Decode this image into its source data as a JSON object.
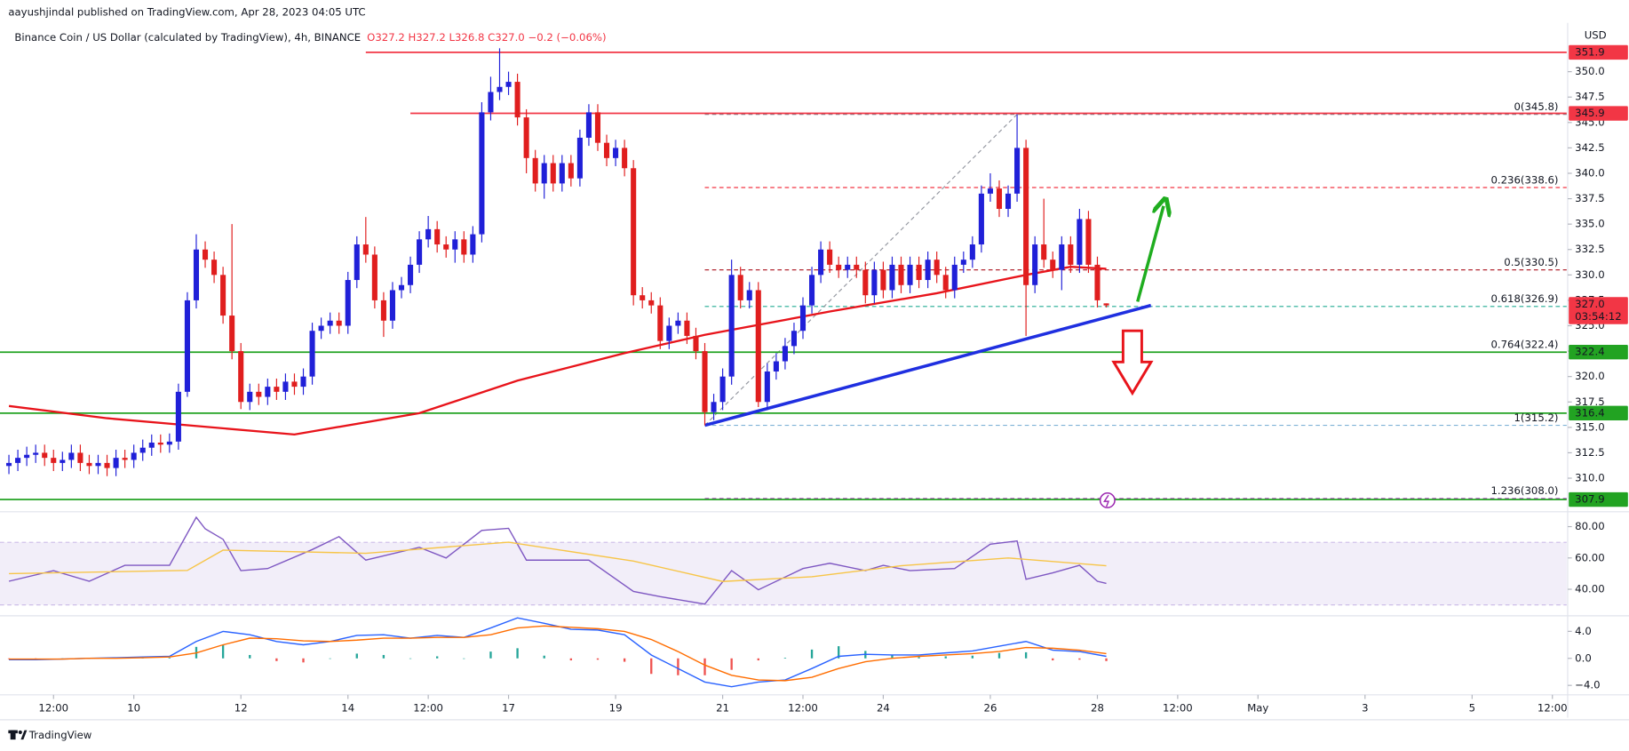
{
  "header": {
    "publisher": "aayushjindal published on TradingView.com, Apr 28, 2023 04:05 UTC"
  },
  "footer": {
    "brand": "TradingView"
  },
  "chart_data": [
    {
      "type": "candlestick",
      "title": "Binance Coin / US Dollar (calculated by TradingView), 4h, BINANCE",
      "subtitle": "O327.2 H327.2 L326.8 C327.0 −0.2 (−0.06%)",
      "y_axis_label": "USD",
      "up_color": "#2020d8",
      "down_color": "#e01e1e",
      "open": [
        311.2,
        311.5,
        312,
        312.3,
        312.5,
        312,
        311.5,
        311.8,
        312.5,
        311.5,
        311.2,
        311.5,
        311,
        312,
        311.8,
        312.5,
        313,
        313.5,
        313.3,
        313.6,
        318.5,
        327.5,
        332.5,
        331.5,
        330,
        326,
        322.5,
        317.5,
        318.5,
        318,
        319,
        318.5,
        319.5,
        319,
        320,
        324.5,
        325,
        325.5,
        325,
        329.5,
        333,
        332,
        327.5,
        325.5,
        328.5,
        329,
        331,
        333.5,
        334.5,
        333,
        332.5,
        333.5,
        332,
        334,
        346,
        348,
        348.5,
        349,
        345.5,
        341.5,
        339,
        341,
        339,
        341,
        339.5,
        343.5,
        346,
        343,
        341.5,
        342.5,
        340.5,
        328,
        327.5,
        327,
        323.5,
        325,
        325.5,
        324,
        322.5,
        316.5,
        317.5,
        320,
        330,
        327.5,
        328.5,
        317.5,
        320.5,
        321.5,
        323,
        324.5,
        327,
        330,
        332.5,
        331,
        330.5,
        331,
        330.5,
        328,
        330.5,
        328.5,
        331,
        329,
        331,
        329.5,
        331.5,
        330,
        328.5,
        331,
        331.5,
        333,
        338,
        338.5,
        336.5,
        338,
        342.5,
        329,
        333,
        331.5,
        330.5,
        333,
        331,
        335.5,
        331,
        327.2
      ],
      "high": [
        312.3,
        312.8,
        313.1,
        313.3,
        313.3,
        312.8,
        312.6,
        313.3,
        313.3,
        312.3,
        312.3,
        312.3,
        312.8,
        312.8,
        313.3,
        313.8,
        314.3,
        314.3,
        314.4,
        319.3,
        328.3,
        334,
        333.3,
        332.3,
        330.8,
        335,
        323.3,
        319.3,
        319.3,
        319.8,
        319.8,
        320.3,
        320.3,
        320.8,
        325.3,
        325.8,
        326.3,
        326.3,
        330.3,
        333.8,
        335.7,
        332.8,
        328.3,
        329.3,
        329.8,
        331.8,
        334.3,
        335.8,
        335.3,
        333.8,
        334.3,
        334.3,
        334.8,
        347,
        349.5,
        352.3,
        350,
        349.8,
        346.3,
        342.3,
        341.8,
        341.8,
        341.8,
        341.8,
        344.3,
        346.8,
        346.8,
        343.8,
        343.3,
        343.3,
        341.3,
        328.8,
        328.3,
        327.8,
        325.8,
        326.3,
        326.3,
        324.8,
        323.3,
        318.3,
        320.8,
        331.5,
        330.8,
        329.3,
        329.3,
        321.3,
        322.3,
        323.8,
        325.3,
        327.8,
        330.8,
        333.3,
        333.3,
        331.8,
        331.8,
        331.8,
        331.3,
        331.3,
        331.3,
        331.8,
        331.8,
        331.8,
        331.8,
        332.3,
        332.3,
        330.8,
        331.8,
        332.3,
        333.8,
        338.8,
        340,
        339.3,
        338.8,
        345.8,
        343.3,
        333.8,
        337.5,
        332.3,
        333.8,
        333.8,
        336.5,
        336.3,
        331.8,
        327.2
      ],
      "low": [
        310.4,
        310.7,
        311.2,
        311.5,
        311.2,
        310.7,
        310.7,
        311,
        310.7,
        310.4,
        310.4,
        310.2,
        310.2,
        311,
        311,
        311.7,
        312.2,
        312.5,
        312.5,
        312.8,
        318,
        326.7,
        330.7,
        329.2,
        325.2,
        321.7,
        316.8,
        316.7,
        317.2,
        317.2,
        317.7,
        317.7,
        318.2,
        318.2,
        319.2,
        323.7,
        324.2,
        324.2,
        324.2,
        328.7,
        331.2,
        326.7,
        323.9,
        324.7,
        327.7,
        328.2,
        330.2,
        332.7,
        332.2,
        331.7,
        331.2,
        331.2,
        331.2,
        333.2,
        345.2,
        347.2,
        347.7,
        344.7,
        340,
        338.2,
        337.5,
        338.2,
        338.2,
        338.7,
        338.7,
        342.7,
        342.2,
        340.7,
        340.7,
        339.7,
        327,
        326.7,
        326.2,
        322.7,
        322.7,
        324.2,
        323.2,
        321.7,
        315.2,
        315.7,
        316.7,
        319.2,
        326.7,
        326.7,
        317,
        316.7,
        319.7,
        320.7,
        322.2,
        323.7,
        326.2,
        329.2,
        330.2,
        329.7,
        329.7,
        329.7,
        327.2,
        327.2,
        327.7,
        327.7,
        328.2,
        328.2,
        328.7,
        328.7,
        329.2,
        327.7,
        327.7,
        330.2,
        330.7,
        332.2,
        337.2,
        335.7,
        335.7,
        337.2,
        324,
        328.2,
        330.7,
        329.7,
        328.5,
        330.2,
        330.2,
        330.2,
        326.8,
        326.8
      ],
      "close": [
        311.5,
        312,
        312.3,
        312.5,
        312,
        311.5,
        311.8,
        312.5,
        311.5,
        311.2,
        311.5,
        311,
        312,
        311.8,
        312.5,
        313,
        313.5,
        313.3,
        313.6,
        318.5,
        327.5,
        332.5,
        331.5,
        330,
        326,
        322.5,
        317.5,
        318.5,
        318,
        319,
        318.5,
        319.5,
        319,
        320,
        324.5,
        325,
        325.5,
        325,
        329.5,
        333,
        332,
        327.5,
        325.5,
        328.5,
        329,
        331,
        333.5,
        334.5,
        333,
        332.5,
        333.5,
        332,
        334,
        346,
        348,
        348.5,
        349,
        345.5,
        341.5,
        339,
        341,
        339,
        341,
        339.5,
        343.5,
        346,
        343,
        341.5,
        342.5,
        340.5,
        328,
        327.5,
        327,
        323.5,
        325,
        325.5,
        324,
        322.5,
        316.5,
        317.5,
        320,
        330,
        327.5,
        328.5,
        317.5,
        320.5,
        321.5,
        323,
        324.5,
        327,
        330,
        332.5,
        331,
        330.5,
        331,
        330.5,
        328,
        330.5,
        328.5,
        331,
        329,
        331,
        329.5,
        331.5,
        330,
        328.5,
        331,
        331.5,
        333,
        338,
        338.5,
        336.5,
        338,
        342.5,
        329,
        333,
        331.5,
        330.5,
        333,
        331,
        335.5,
        331,
        327.5,
        327
      ],
      "xlim": [
        -1,
        174.6
      ],
      "xticks": [
        {
          "value": 5,
          "label": "12:00"
        },
        {
          "value": 14,
          "label": "10"
        },
        {
          "value": 26,
          "label": "12"
        },
        {
          "value": 38,
          "label": "14"
        },
        {
          "value": 47,
          "label": "12:00"
        },
        {
          "value": 56,
          "label": "17"
        },
        {
          "value": 68,
          "label": "19"
        },
        {
          "value": 80,
          "label": "21"
        },
        {
          "value": 89,
          "label": "12:00"
        },
        {
          "value": 98,
          "label": "24"
        },
        {
          "value": 110,
          "label": "26"
        },
        {
          "value": 122,
          "label": "28"
        },
        {
          "value": 131,
          "label": "12:00"
        },
        {
          "value": 140,
          "label": "May"
        },
        {
          "value": 152,
          "label": "3"
        },
        {
          "value": 164,
          "label": "5"
        },
        {
          "value": 173,
          "label": "12:00"
        }
      ],
      "ylim": [
        306.9,
        354.8
      ],
      "yticks": [
        {
          "value": 310,
          "label": "310.0"
        },
        {
          "value": 312.5,
          "label": "312.5"
        },
        {
          "value": 315,
          "label": "315.0"
        },
        {
          "value": 317.5,
          "label": "317.5"
        },
        {
          "value": 320,
          "label": "320.0"
        },
        {
          "value": 322.5,
          "label": "322.5"
        },
        {
          "value": 325,
          "label": "325.0"
        },
        {
          "value": 327.5,
          "label": "327.5"
        },
        {
          "value": 330,
          "label": "330.0"
        },
        {
          "value": 332.5,
          "label": "332.5"
        },
        {
          "value": 335,
          "label": "335.0"
        },
        {
          "value": 337.5,
          "label": "337.5"
        },
        {
          "value": 340,
          "label": "340.0"
        },
        {
          "value": 342.5,
          "label": "342.5"
        },
        {
          "value": 345,
          "label": "345.0"
        },
        {
          "value": 347.5,
          "label": "347.5"
        },
        {
          "value": 350,
          "label": "350.0"
        }
      ],
      "moving_average": {
        "color": "#e8141b",
        "x": [
          0,
          11,
          32,
          46,
          57,
          69,
          78,
          92,
          104,
          114,
          119,
          123
        ],
        "values": [
          317.1,
          315.9,
          314.3,
          316.4,
          319.6,
          322.3,
          324.1,
          326.4,
          328.2,
          330,
          330.8,
          330.6
        ]
      },
      "levels": [
        {
          "value": 351.9,
          "label": "351.9",
          "color": "#f23645",
          "x_start": 40
        },
        {
          "value": 345.9,
          "label": "345.9",
          "color": "#f23645",
          "x_start": 45
        },
        {
          "value": 322.4,
          "label": "322.4",
          "color": "#22a322"
        },
        {
          "value": 316.4,
          "label": "316.4",
          "color": "#22a322"
        },
        {
          "value": 307.9,
          "label": "307.9",
          "color": "#22a322"
        }
      ],
      "fibonacci": {
        "x_start": 78,
        "base": {
          "x": [
            78,
            113
          ],
          "values": [
            315.2,
            345.8
          ]
        },
        "levels": [
          {
            "value": 345.8,
            "label": "0(345.8)",
            "color": "#787b86"
          },
          {
            "value": 338.6,
            "label": "0.236(338.6)",
            "color": "#f23645"
          },
          {
            "value": 330.5,
            "label": "0.5(330.5)",
            "color": "#b22833"
          },
          {
            "value": 326.9,
            "label": "0.618(326.9)",
            "color": "#22ab94"
          },
          {
            "value": 322.4,
            "label": "0.764(322.4)",
            "color": "#b22833"
          },
          {
            "value": 315.2,
            "label": "1(315.2)",
            "color": "#7fb2d6"
          },
          {
            "value": 308.0,
            "label": "1.236(308.0)",
            "color": "#9c27b0"
          }
        ]
      },
      "trendline": {
        "color": "#1f2fe0",
        "x": [
          78,
          128
        ],
        "values": [
          315.2,
          327
        ]
      },
      "last_price": {
        "value": 327.0,
        "label": "327.0",
        "countdown": "03:54:12",
        "color": "#f23645"
      }
    },
    {
      "type": "line",
      "ylim": [
        24.4,
        87.5
      ],
      "yticks": [
        {
          "value": 40,
          "label": "40.00"
        },
        {
          "value": 60,
          "label": "60.00"
        },
        {
          "value": 80,
          "label": "80.00"
        }
      ],
      "band": [
        30,
        70
      ],
      "band_color": "#7e57c2",
      "series": [
        {
          "color": "#7e57c2",
          "x": [
            0,
            5,
            9,
            13,
            18,
            21,
            22,
            24,
            26,
            29,
            34,
            37,
            40,
            46,
            49,
            53,
            56,
            58,
            62,
            65,
            70,
            73,
            78,
            81,
            84,
            89,
            92,
            96,
            98,
            101,
            106,
            110,
            113,
            114,
            117,
            120,
            122,
            123
          ],
          "values": [
            45.1,
            51.9,
            45.1,
            55.3,
            55.3,
            86,
            78.6,
            71.9,
            51.9,
            53.2,
            65.4,
            73.6,
            58.6,
            66.8,
            60,
            77.6,
            78.9,
            58.6,
            58.6,
            58.6,
            38.6,
            35.3,
            30.5,
            51.9,
            39.7,
            53.2,
            56.6,
            51.9,
            55.3,
            51.9,
            53.2,
            68.8,
            70.8,
            46.4,
            50.5,
            55.3,
            45.1,
            43.7
          ]
        },
        {
          "color": "#f7c548",
          "x": [
            0,
            20,
            24,
            40,
            56,
            70,
            80,
            90,
            100,
            112,
            123
          ],
          "values": [
            50,
            52,
            65,
            63,
            70,
            58,
            45,
            48,
            55,
            60,
            55
          ]
        }
      ]
    },
    {
      "type": "macd",
      "ylim": [
        -5.4,
        6.15
      ],
      "yticks": [
        {
          "value": 4,
          "label": "4.0"
        },
        {
          "value": 0,
          "label": "0.0"
        },
        {
          "value": -4,
          "label": "−4.0"
        }
      ],
      "x": [
        0,
        3,
        6,
        9,
        12,
        15,
        18,
        21,
        24,
        27,
        30,
        33,
        36,
        39,
        42,
        45,
        48,
        51,
        54,
        57,
        60,
        63,
        66,
        69,
        72,
        75,
        78,
        81,
        84,
        87,
        90,
        93,
        96,
        99,
        102,
        105,
        108,
        111,
        114,
        117,
        120,
        123
      ],
      "series": [
        {
          "color": "#2962ff",
          "values": [
            -0.2,
            -0.2,
            -0.1,
            0,
            0.1,
            0.2,
            0.3,
            2.5,
            4.0,
            3.5,
            2.5,
            2.0,
            2.5,
            3.4,
            3.5,
            3.0,
            3.4,
            3.1,
            4.5,
            6.0,
            5.2,
            4.3,
            4.2,
            3.5,
            0.5,
            -1.5,
            -3.5,
            -4.2,
            -3.5,
            -3.2,
            -1.5,
            0.3,
            0.6,
            0.5,
            0.5,
            0.8,
            1.1,
            1.8,
            2.5,
            1.2,
            1.0,
            0.3
          ]
        },
        {
          "color": "#ff6d00",
          "values": [
            -0.1,
            -0.1,
            -0.1,
            0,
            0,
            0.1,
            0.2,
            0.8,
            2.0,
            3.0,
            2.9,
            2.6,
            2.5,
            2.7,
            3.0,
            3.0,
            3.1,
            3.1,
            3.5,
            4.5,
            4.8,
            4.6,
            4.4,
            4.0,
            2.8,
            1.0,
            -1.0,
            -2.5,
            -3.2,
            -3.3,
            -2.8,
            -1.5,
            -0.5,
            0,
            0.3,
            0.5,
            0.7,
            1.0,
            1.6,
            1.5,
            1.2,
            0.7
          ]
        }
      ],
      "histogram": {
        "up_color": "#26a69a",
        "down_color": "#ef5350",
        "values": [
          -0.1,
          -0.1,
          0,
          0,
          0.1,
          0.1,
          0.1,
          1.7,
          2.0,
          0.5,
          -0.4,
          -0.6,
          0,
          0.7,
          0.5,
          0,
          0.3,
          0,
          1.0,
          1.5,
          0.4,
          -0.3,
          -0.2,
          -0.5,
          -2.3,
          -2.5,
          -2.5,
          -1.7,
          -0.3,
          0.1,
          1.3,
          1.8,
          1.1,
          0.5,
          0.2,
          0.3,
          0.4,
          0.8,
          0.9,
          -0.3,
          -0.2,
          -0.4
        ]
      }
    }
  ]
}
